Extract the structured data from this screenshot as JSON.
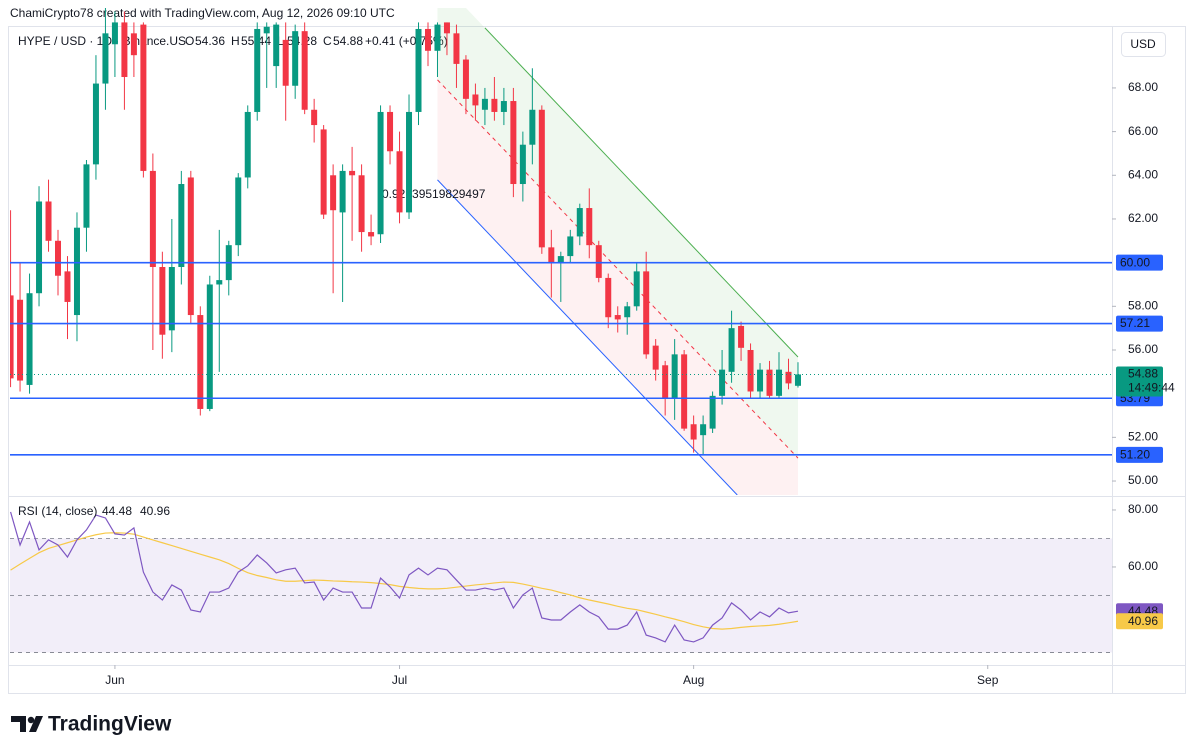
{
  "header": {
    "credit": "ChamiCrypto78 created with TradingView.com, Aug 12, 2026 09:10 UTC"
  },
  "footer": {
    "logo": "TradingView"
  },
  "chart_data": [
    {
      "type": "candlestick",
      "symbol": "HYPE / USD · 1D · Binance.US",
      "legend": [
        {
          "key": "O",
          "value": 54.36
        },
        {
          "key": "H",
          "value": 55.44
        },
        {
          "key": "L",
          "value": 54.28
        },
        {
          "key": "C",
          "value": 54.88
        }
      ],
      "change": "+0.41 (+0.75%)",
      "currency": "USD",
      "up_color": "#089981",
      "down_color": "#f23645",
      "open": [
        58.5,
        58.3,
        54.4,
        58.6,
        62.8,
        61.0,
        59.6,
        57.6,
        61.6,
        64.5,
        68.2,
        70,
        71,
        70.5,
        70.9,
        64.2,
        59.8,
        56.9,
        59.8,
        63.9,
        57.6,
        53.3,
        59.0,
        59.2,
        60.8,
        63.9,
        66.9,
        70.5,
        69,
        70.2,
        68.1,
        70.6,
        67.0,
        66.1,
        64.0,
        62.3,
        64.2,
        64.0,
        61.4,
        61.3,
        66.9,
        65.1,
        62.3,
        66.9,
        70.7,
        69.7,
        71,
        70.5,
        69.3,
        67.7,
        67.0,
        67.5,
        66.9,
        67.4,
        63.6,
        65.4,
        67.0,
        60.7,
        60.0,
        60.3,
        61.2,
        62.5,
        60.8,
        59.3,
        57.6,
        57.5,
        58.0,
        59.6,
        56.2,
        55.3,
        53.8,
        55.8,
        52.6,
        52.1,
        52.4,
        53.9,
        55.0,
        57.1,
        56.0,
        54.1,
        55.1,
        53.9,
        55.0,
        54.36
      ],
      "high": [
        62.4,
        60,
        59.5,
        63.5,
        63.8,
        61.5,
        60.3,
        62.3,
        64.7,
        69.5,
        72,
        71.5,
        71.5,
        71,
        71,
        65,
        60.5,
        62,
        64.2,
        64.2,
        58,
        59.4,
        61.5,
        61,
        64.1,
        67.2,
        71,
        71,
        71,
        71,
        70.9,
        71,
        67.5,
        66.3,
        64.5,
        64.5,
        65.3,
        64.5,
        62.2,
        67.2,
        67.2,
        66,
        67.7,
        71,
        71,
        71,
        71,
        70.9,
        69.5,
        68.2,
        68,
        68.5,
        68,
        68,
        66,
        68.9,
        67.2,
        61.5,
        60.5,
        61.5,
        62.7,
        63.4,
        61,
        59.5,
        58,
        58.2,
        60,
        60.5,
        56.5,
        55.5,
        56.5,
        56,
        53,
        53,
        54.1,
        56,
        57.8,
        57.3,
        56.3,
        55.4,
        55.5,
        55.9,
        55.6,
        55.44
      ],
      "low": [
        54.3,
        54.1,
        54.0,
        58.0,
        60.5,
        58.5,
        56.5,
        56.4,
        60.5,
        63.8,
        67,
        68.5,
        67,
        68.5,
        63.9,
        56,
        55.6,
        55.9,
        59,
        57.2,
        53.0,
        53.2,
        55,
        58.5,
        60.3,
        63.4,
        66.5,
        68,
        68,
        66.5,
        67.5,
        66.8,
        65.5,
        62.0,
        58.6,
        58.2,
        61,
        60.5,
        60.8,
        60.9,
        64.5,
        61.8,
        62,
        66.3,
        69,
        68.5,
        69.5,
        68,
        66.8,
        66.5,
        66.3,
        66.5,
        66.3,
        63.0,
        62.8,
        64.5,
        60.4,
        58.4,
        58.2,
        60,
        60.8,
        60.2,
        59.1,
        57.0,
        56.8,
        56.7,
        57.8,
        55.6,
        54.6,
        53.0,
        52.8,
        52.3,
        51.3,
        51.2,
        52.2,
        53.5,
        54.5,
        55.5,
        53.8,
        53.8,
        53.8,
        53.8,
        54.2,
        54.28
      ],
      "close": [
        54.7,
        54.6,
        58.6,
        62.8,
        61.0,
        59.4,
        58.2,
        61.6,
        64.5,
        68.2,
        70.5,
        71,
        68.5,
        69.5,
        64.2,
        59.8,
        56.7,
        59.8,
        63.6,
        57.6,
        53.3,
        59.0,
        59.2,
        60.8,
        63.9,
        66.9,
        70.7,
        70.8,
        70.9,
        68.1,
        70.6,
        67.0,
        66.3,
        62.2,
        62.4,
        64.2,
        64.0,
        61.4,
        61.2,
        66.9,
        65.1,
        62.3,
        66.9,
        70.7,
        69.7,
        70.9,
        70.5,
        69.1,
        67.5,
        67.2,
        67.5,
        66.9,
        67.4,
        63.6,
        65.4,
        67.0,
        60.7,
        60.0,
        60.3,
        61.2,
        62.5,
        60.8,
        59.3,
        57.5,
        57.4,
        58.0,
        59.6,
        55.8,
        55.1,
        53.8,
        55.8,
        52.4,
        51.9,
        52.6,
        53.9,
        55.1,
        57.0,
        56.1,
        54.1,
        55.1,
        53.9,
        55.1,
        54.47,
        54.88
      ],
      "countdown": "14:49:44",
      "xlim": [
        -0.06,
        116.1
      ],
      "xticks": [
        {
          "value": 11,
          "label": "Jun"
        },
        {
          "value": 41,
          "label": "Jul"
        },
        {
          "value": 72,
          "label": "Aug"
        },
        {
          "value": 103,
          "label": "Sep"
        }
      ],
      "ylim": [
        49.36,
        71.66
      ],
      "yticks": [
        {
          "value": 50,
          "label": "50.00"
        },
        {
          "value": 52,
          "label": "52.00"
        },
        {
          "value": 56,
          "label": "56.00"
        },
        {
          "value": 58,
          "label": "58.00"
        },
        {
          "value": 62,
          "label": "62.00"
        },
        {
          "value": 64,
          "label": "64.00"
        },
        {
          "value": 66,
          "label": "66.00"
        },
        {
          "value": 68,
          "label": "68.00"
        }
      ],
      "level_color": "#2962ff",
      "levels": [
        {
          "value": 60,
          "label": "60.00"
        },
        {
          "value": 57.21,
          "label": "57.21"
        },
        {
          "value": 53.79,
          "label": "53.79"
        },
        {
          "value": 51.2,
          "label": "51.20"
        }
      ],
      "channel": {
        "label": "0.92639519829497",
        "upper": [
          [
            50,
            70.75
          ],
          [
            83,
            55.68
          ]
        ],
        "middle": [
          [
            45,
            68.37
          ],
          [
            83,
            51.05
          ]
        ],
        "lower": [
          [
            45,
            63.79
          ],
          [
            76.6,
            49.36
          ]
        ]
      }
    },
    {
      "type": "line",
      "title": "RSI (14, close)",
      "ylim": [
        25.6,
        84.2
      ],
      "yticks": [
        {
          "value": 60,
          "label": "60.00"
        },
        {
          "value": 80,
          "label": "80.00"
        }
      ],
      "band": [
        30,
        70
      ],
      "midline": 50,
      "series": [
        {
          "color": "#7e57c2",
          "values": [
            79.3,
            67.7,
            75.8,
            66,
            69.5,
            67.7,
            63.5,
            69.5,
            73,
            78.2,
            77.2,
            71.6,
            71.2,
            73.7,
            58.2,
            51.2,
            48.4,
            53.7,
            51.9,
            44.9,
            44.2,
            51.2,
            51.2,
            52.6,
            58.2,
            60.4,
            64.2,
            61.4,
            57.9,
            59,
            59.6,
            54.4,
            54.7,
            48.4,
            52.6,
            51.2,
            51.2,
            45.6,
            45.6,
            56.1,
            53,
            49.1,
            57.2,
            59.6,
            57.2,
            59.6,
            59,
            55.4,
            51.9,
            51.9,
            52.6,
            51.9,
            52.6,
            45.6,
            50.2,
            52.6,
            42.1,
            41.4,
            41.4,
            44.2,
            46.7,
            44.2,
            42.5,
            38.2,
            38.2,
            39.6,
            44.2,
            36.1,
            35.1,
            33.7,
            39.6,
            34.4,
            33.7,
            35.1,
            39.6,
            42.1,
            47.4,
            44.9,
            41.4,
            44.2,
            42.5,
            45.6,
            43.9,
            44.48
          ]
        },
        {
          "color": "#f7c948",
          "values": [
            58.9,
            61,
            63,
            65,
            66.5,
            67.5,
            68.5,
            69.5,
            70.5,
            71.3,
            71.9,
            72.0,
            71.9,
            71.5,
            70.5,
            69.5,
            68.5,
            67.5,
            66.5,
            65.5,
            64.5,
            63.5,
            62.5,
            61.2,
            59.5,
            58,
            57,
            56.3,
            55.5,
            55,
            55,
            55.2,
            55.4,
            55.3,
            55.1,
            55,
            54.8,
            54.7,
            54.5,
            54.2,
            53.8,
            53.2,
            52.8,
            52.5,
            52.3,
            52.3,
            52.5,
            52.9,
            53.3,
            53.7,
            54,
            54.4,
            54.7,
            54.6,
            54,
            53.3,
            52.5,
            51.9,
            51,
            50.2,
            49.2,
            48.4,
            47.7,
            47,
            46.2,
            45.5,
            45,
            44.2,
            43.4,
            42.5,
            41.7,
            40.8,
            39.8,
            39,
            38.4,
            38.2,
            38.4,
            38.8,
            39.1,
            39.3,
            39.5,
            39.9,
            40.4,
            40.96
          ]
        }
      ]
    }
  ]
}
